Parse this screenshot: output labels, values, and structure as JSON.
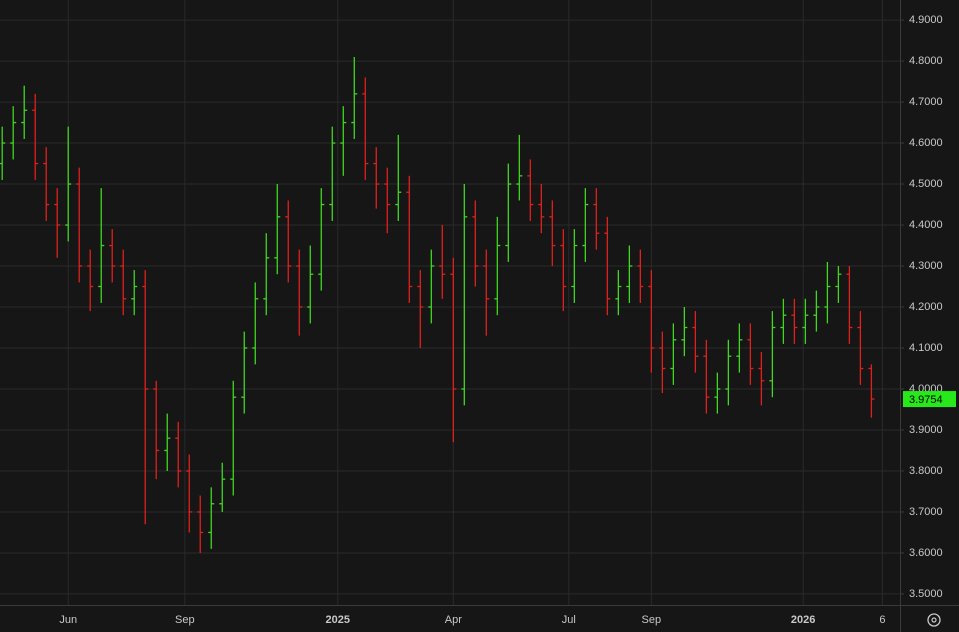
{
  "chart_data": {
    "type": "ohlc",
    "open": [
      4.55,
      4.6,
      4.65,
      4.68,
      4.55,
      4.45,
      4.4,
      4.5,
      4.3,
      4.25,
      4.35,
      4.3,
      4.22,
      4.25,
      4.0,
      3.85,
      3.88,
      3.8,
      3.7,
      3.65,
      3.72,
      3.78,
      3.98,
      4.1,
      4.22,
      4.32,
      4.42,
      4.3,
      4.2,
      4.28,
      4.45,
      4.6,
      4.65,
      4.72,
      4.55,
      4.5,
      4.45,
      4.48,
      4.25,
      4.2,
      4.3,
      4.28,
      4.0,
      4.42,
      4.3,
      4.22,
      4.35,
      4.5,
      4.52,
      4.45,
      4.42,
      4.35,
      4.25,
      4.35,
      4.45,
      4.38,
      4.22,
      4.25,
      4.3,
      4.25,
      4.1,
      4.05,
      4.12,
      4.15,
      4.08,
      3.98,
      4.0,
      4.08,
      4.12,
      4.05,
      4.02,
      4.15,
      4.18,
      4.15,
      4.18,
      4.2,
      4.25,
      4.28,
      4.15,
      4.05
    ],
    "high": [
      4.64,
      4.69,
      4.74,
      4.72,
      4.59,
      4.49,
      4.64,
      4.54,
      4.34,
      4.49,
      4.39,
      4.34,
      4.29,
      4.29,
      4.02,
      3.94,
      3.92,
      3.84,
      3.74,
      3.76,
      3.82,
      4.02,
      4.14,
      4.26,
      4.38,
      4.5,
      4.46,
      4.34,
      4.35,
      4.49,
      4.64,
      4.69,
      4.81,
      4.76,
      4.59,
      4.54,
      4.62,
      4.52,
      4.29,
      4.34,
      4.4,
      4.32,
      4.5,
      4.46,
      4.34,
      4.42,
      4.55,
      4.62,
      4.56,
      4.5,
      4.46,
      4.39,
      4.39,
      4.49,
      4.49,
      4.42,
      4.29,
      4.35,
      4.34,
      4.29,
      4.14,
      4.16,
      4.2,
      4.19,
      4.12,
      4.04,
      4.12,
      4.16,
      4.16,
      4.09,
      4.19,
      4.22,
      4.22,
      4.22,
      4.24,
      4.31,
      4.3,
      4.3,
      4.19,
      4.06
    ],
    "low": [
      4.51,
      4.56,
      4.61,
      4.51,
      4.41,
      4.32,
      4.36,
      4.26,
      4.19,
      4.21,
      4.26,
      4.18,
      4.18,
      3.67,
      3.78,
      3.8,
      3.76,
      3.65,
      3.6,
      3.61,
      3.7,
      3.74,
      3.94,
      4.06,
      4.18,
      4.28,
      4.26,
      4.13,
      4.16,
      4.24,
      4.41,
      4.52,
      4.61,
      4.51,
      4.44,
      4.38,
      4.41,
      4.21,
      4.1,
      4.16,
      4.22,
      3.87,
      3.96,
      4.25,
      4.13,
      4.18,
      4.31,
      4.46,
      4.41,
      4.38,
      4.3,
      4.19,
      4.21,
      4.31,
      4.34,
      4.18,
      4.18,
      4.21,
      4.21,
      4.04,
      3.99,
      4.01,
      4.08,
      4.04,
      3.94,
      3.94,
      3.96,
      4.04,
      4.01,
      3.96,
      3.98,
      4.11,
      4.11,
      4.11,
      4.14,
      4.16,
      4.21,
      4.11,
      4.01,
      3.93
    ],
    "close": [
      4.6,
      4.65,
      4.68,
      4.55,
      4.45,
      4.4,
      4.5,
      4.3,
      4.25,
      4.35,
      4.3,
      4.22,
      4.25,
      4.0,
      3.85,
      3.88,
      3.8,
      3.7,
      3.65,
      3.72,
      3.78,
      3.98,
      4.1,
      4.22,
      4.32,
      4.42,
      4.3,
      4.2,
      4.28,
      4.45,
      4.6,
      4.65,
      4.72,
      4.55,
      4.5,
      4.45,
      4.48,
      4.25,
      4.2,
      4.3,
      4.28,
      4.0,
      4.42,
      4.3,
      4.22,
      4.35,
      4.5,
      4.52,
      4.45,
      4.42,
      4.35,
      4.25,
      4.35,
      4.45,
      4.38,
      4.22,
      4.25,
      4.3,
      4.25,
      4.1,
      4.05,
      4.12,
      4.15,
      4.08,
      3.98,
      4.0,
      4.08,
      4.12,
      4.05,
      4.02,
      4.15,
      4.18,
      4.15,
      4.18,
      4.2,
      4.25,
      4.28,
      4.15,
      4.05,
      3.9754
    ],
    "up_color": "#3fd81f",
    "down_color": "#e0201c",
    "last_color": "#27e81b",
    "xlim": [
      -0.2,
      81.6
    ],
    "xticks": [
      {
        "value": 6,
        "label": "Jun"
      },
      {
        "value": 16.6,
        "label": "Sep"
      },
      {
        "value": 30.5,
        "label": "2025"
      },
      {
        "value": 41,
        "label": "Apr"
      },
      {
        "value": 51.5,
        "label": "Jul"
      },
      {
        "value": 59,
        "label": "Sep"
      },
      {
        "value": 72.8,
        "label": "2026"
      },
      {
        "value": 80,
        "label": "6"
      }
    ],
    "ylim": [
      3.473,
      4.949
    ],
    "yticks": [
      {
        "value": 3.5,
        "label": "3.5000"
      },
      {
        "value": 3.6,
        "label": "3.6000"
      },
      {
        "value": 3.7,
        "label": "3.7000"
      },
      {
        "value": 3.8,
        "label": "3.8000"
      },
      {
        "value": 3.9,
        "label": "3.9000"
      },
      {
        "value": 4.0,
        "label": "4.0000"
      },
      {
        "value": 4.1,
        "label": "4.1000"
      },
      {
        "value": 4.2,
        "label": "4.2000"
      },
      {
        "value": 4.3,
        "label": "4.3000"
      },
      {
        "value": 4.4,
        "label": "4.4000"
      },
      {
        "value": 4.5,
        "label": "4.5000"
      },
      {
        "value": 4.6,
        "label": "4.6000"
      },
      {
        "value": 4.7,
        "label": "4.7000"
      },
      {
        "value": 4.8,
        "label": "4.8000"
      },
      {
        "value": 4.9,
        "label": "4.9000"
      }
    ],
    "grid": true
  }
}
